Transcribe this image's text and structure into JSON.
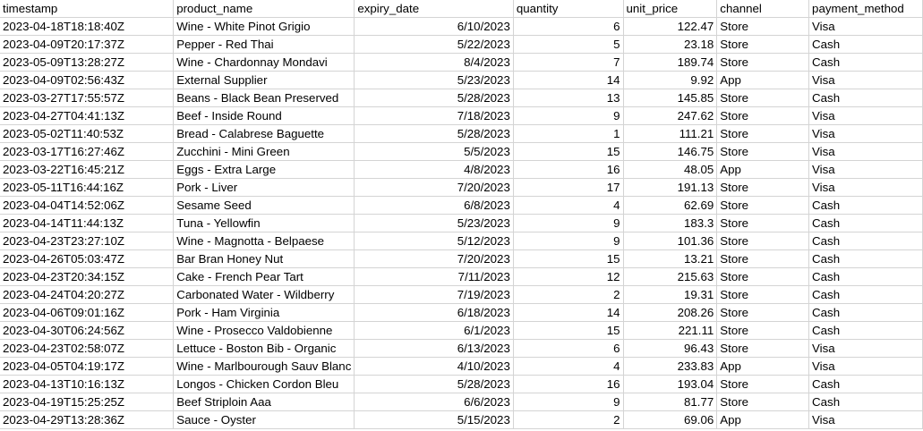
{
  "sheet": {
    "headers": [
      "timestamp",
      "product_name",
      "expiry_date",
      "quantity",
      "unit_price",
      "channel",
      "payment_method"
    ],
    "rows": [
      [
        "2023-04-18T18:18:40Z",
        "Wine - White Pinot Grigio",
        "6/10/2023",
        "6",
        "122.47",
        "Store",
        "Visa"
      ],
      [
        "2023-04-09T20:17:37Z",
        "Pepper - Red Thai",
        "5/22/2023",
        "5",
        "23.18",
        "Store",
        "Cash"
      ],
      [
        "2023-05-09T13:28:27Z",
        "Wine - Chardonnay Mondavi",
        "8/4/2023",
        "7",
        "189.74",
        "Store",
        "Cash"
      ],
      [
        "2023-04-09T02:56:43Z",
        "External Supplier",
        "5/23/2023",
        "14",
        "9.92",
        "App",
        "Visa"
      ],
      [
        "2023-03-27T17:55:57Z",
        "Beans - Black Bean Preserved",
        "5/28/2023",
        "13",
        "145.85",
        "Store",
        "Cash"
      ],
      [
        "2023-04-27T04:41:13Z",
        "Beef - Inside Round",
        "7/18/2023",
        "9",
        "247.62",
        "Store",
        "Visa"
      ],
      [
        "2023-05-02T11:40:53Z",
        "Bread - Calabrese Baguette",
        "5/28/2023",
        "1",
        "111.21",
        "Store",
        "Visa"
      ],
      [
        "2023-03-17T16:27:46Z",
        "Zucchini - Mini Green",
        "5/5/2023",
        "15",
        "146.75",
        "Store",
        "Visa"
      ],
      [
        "2023-03-22T16:45:21Z",
        "Eggs - Extra Large",
        "4/8/2023",
        "16",
        "48.05",
        "App",
        "Visa"
      ],
      [
        "2023-05-11T16:44:16Z",
        "Pork - Liver",
        "7/20/2023",
        "17",
        "191.13",
        "Store",
        "Visa"
      ],
      [
        "2023-04-04T14:52:06Z",
        "Sesame Seed",
        "6/8/2023",
        "4",
        "62.69",
        "Store",
        "Cash"
      ],
      [
        "2023-04-14T11:44:13Z",
        "Tuna - Yellowfin",
        "5/23/2023",
        "9",
        "183.3",
        "Store",
        "Cash"
      ],
      [
        "2023-04-23T23:27:10Z",
        "Wine - Magnotta - Belpaese",
        "5/12/2023",
        "9",
        "101.36",
        "Store",
        "Cash"
      ],
      [
        "2023-04-26T05:03:47Z",
        "Bar Bran Honey Nut",
        "7/20/2023",
        "15",
        "13.21",
        "Store",
        "Cash"
      ],
      [
        "2023-04-23T20:34:15Z",
        "Cake - French Pear Tart",
        "7/11/2023",
        "12",
        "215.63",
        "Store",
        "Cash"
      ],
      [
        "2023-04-24T04:20:27Z",
        "Carbonated Water - Wildberry",
        "7/19/2023",
        "2",
        "19.31",
        "Store",
        "Cash"
      ],
      [
        "2023-04-06T09:01:16Z",
        "Pork - Ham Virginia",
        "6/18/2023",
        "14",
        "208.26",
        "Store",
        "Cash"
      ],
      [
        "2023-04-30T06:24:56Z",
        "Wine - Prosecco Valdobienne",
        "6/1/2023",
        "15",
        "221.11",
        "Store",
        "Cash"
      ],
      [
        "2023-04-23T02:58:07Z",
        "Lettuce - Boston Bib - Organic",
        "6/13/2023",
        "6",
        "96.43",
        "Store",
        "Visa"
      ],
      [
        "2023-04-05T04:19:17Z",
        "Wine - Marlbourough Sauv Blanc",
        "4/10/2023",
        "4",
        "233.83",
        "App",
        "Visa"
      ],
      [
        "2023-04-13T10:16:13Z",
        "Longos - Chicken Cordon Bleu",
        "5/28/2023",
        "16",
        "193.04",
        "Store",
        "Cash"
      ],
      [
        "2023-04-19T15:25:25Z",
        "Beef Striploin Aaa",
        "6/6/2023",
        "9",
        "81.77",
        "Store",
        "Cash"
      ],
      [
        "2023-04-29T13:28:36Z",
        "Sauce - Oyster",
        "5/15/2023",
        "2",
        "69.06",
        "App",
        "Visa"
      ]
    ]
  }
}
